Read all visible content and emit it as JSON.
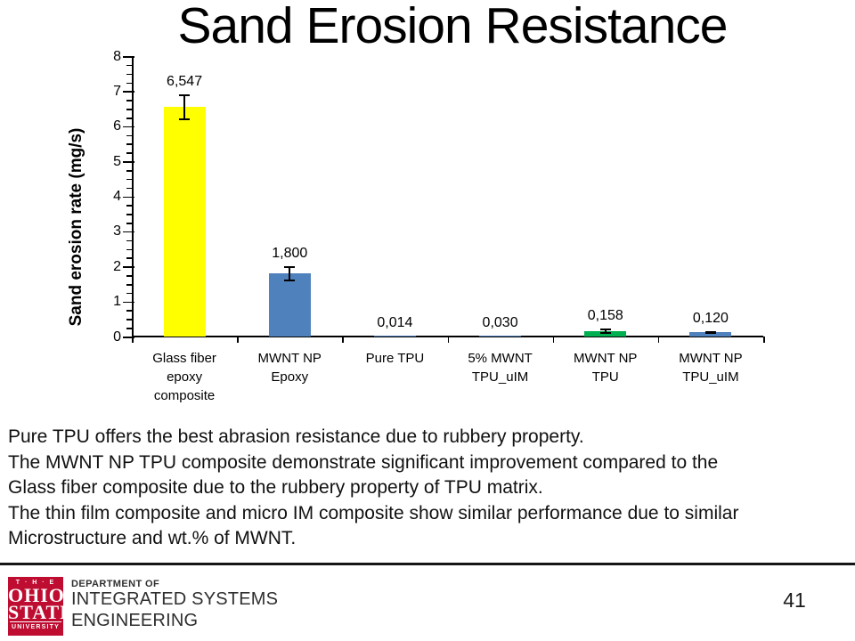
{
  "slide": {
    "title": "Sand Erosion Resistance"
  },
  "chart_data": {
    "type": "bar",
    "title": "",
    "xlabel": "",
    "ylabel": "Sand erosion rate (mg/s)",
    "ylim": [
      0,
      8
    ],
    "y_major_tick": 1,
    "y_minor_tick": 0.25,
    "grid": false,
    "legend": "none",
    "categories": [
      "Glass fiber\nepoxy\ncomposite",
      "MWNT NP\nEpoxy",
      "Pure TPU",
      "5% MWNT\nTPU_uIM",
      "MWNT NP\nTPU",
      "MWNT NP\nTPU_uIM"
    ],
    "values": [
      6.547,
      1.8,
      0.014,
      0.03,
      0.158,
      0.12
    ],
    "value_labels": [
      "6,547",
      "1,800",
      "0,014",
      "0,030",
      "0,158",
      "0,120"
    ],
    "error_bars": [
      0.35,
      0.2,
      0,
      0,
      0.06,
      0.03
    ],
    "bar_colors": [
      "#FFFF00",
      "#4F81BD",
      "#4F81BD",
      "#4F81BD",
      "#00B050",
      "#4F81BD"
    ]
  },
  "notes": {
    "lines": [
      "Pure TPU offers the best abrasion resistance due to rubbery property.",
      "The MWNT NP TPU composite demonstrate significant improvement compared to the",
      "Glass fiber composite due to the rubbery property of TPU matrix.",
      "The thin film composite and micro IM composite show similar performance due to similar",
      "Microstructure and wt.% of MWNT."
    ]
  },
  "footer": {
    "logo": {
      "the": "T · H · E",
      "line1": "OHIO",
      "line2": "STATE",
      "line3": "UNIVERSITY",
      "bg_color": "#BE0D31"
    },
    "department": {
      "line1": "DEPARTMENT OF",
      "line2": "INTEGRATED SYSTEMS",
      "line3": "ENGINEERING"
    },
    "page_number": "41"
  }
}
